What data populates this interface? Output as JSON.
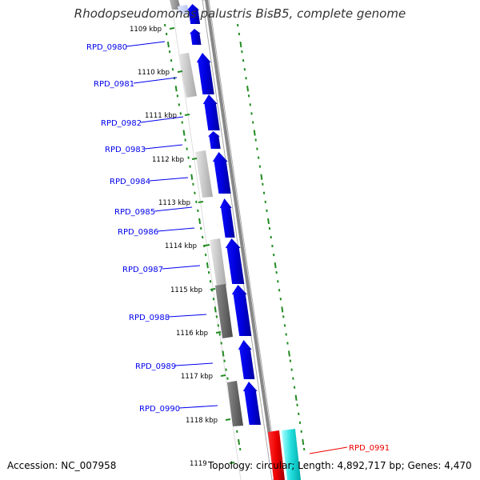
{
  "header": {
    "title": "Rhodopseudomonas palustris BisB5, complete genome"
  },
  "footer": {
    "accession": "Accession: NC_007958",
    "summary": "Topology: circular; Length: 4,892,717 bp; Genes: 4,470"
  },
  "ruler": {
    "ticks": [
      "1109 kbp",
      "1110 kbp",
      "1111 kbp",
      "1112 kbp",
      "1113 kbp",
      "1114 kbp",
      "1115 kbp",
      "1116 kbp",
      "1117 kbp",
      "1118 kbp",
      "1119"
    ]
  },
  "genes": [
    {
      "id": "RPD_0980",
      "color": "#0000ee"
    },
    {
      "id": "RPD_0981",
      "color": "#0000ee"
    },
    {
      "id": "RPD_0982",
      "color": "#0000ee"
    },
    {
      "id": "RPD_0983",
      "color": "#0000ee"
    },
    {
      "id": "RPD_0984",
      "color": "#0000ee"
    },
    {
      "id": "RPD_0985",
      "color": "#0000ee"
    },
    {
      "id": "RPD_0986",
      "color": "#0000ee"
    },
    {
      "id": "RPD_0987",
      "color": "#0000ee"
    },
    {
      "id": "RPD_0988",
      "color": "#0000ee"
    },
    {
      "id": "RPD_0989",
      "color": "#0000ee"
    },
    {
      "id": "RPD_0990",
      "color": "#0000ee"
    },
    {
      "id": "RPD_0991",
      "color": "#ee0000"
    }
  ],
  "colors": {
    "forward_gene": "#0000ee",
    "highlight_gene": "#ee0000",
    "rna_feature": "#00dddd",
    "gc_dots": "#228b22",
    "backbone": "#888888"
  }
}
